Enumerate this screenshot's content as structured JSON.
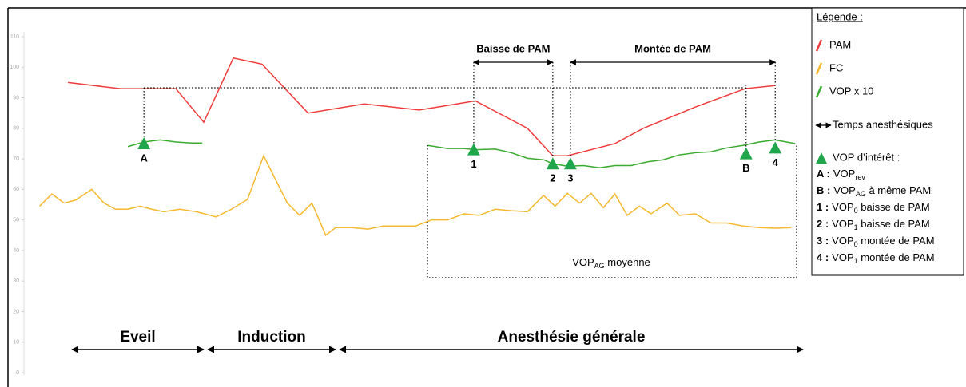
{
  "chart_data": {
    "type": "line",
    "ylim": [
      0,
      110
    ],
    "yticks": [
      0,
      10,
      20,
      30,
      40,
      50,
      60,
      70,
      80,
      90,
      100,
      110
    ],
    "xlim": [
      0,
      100
    ],
    "series": [
      {
        "name": "PAM",
        "color": "#ee3b3b",
        "x": [
          4.7,
          11.5,
          18.75,
          22.4,
          26.25,
          30,
          36,
          43.3,
          50.5,
          54.2,
          57.8,
          64.6,
          67.9,
          69.8,
          76,
          79.7,
          86.5,
          93,
          96.9
        ],
        "values": [
          95,
          93,
          93,
          82,
          103,
          101,
          85,
          88,
          86,
          87.5,
          89,
          80,
          71,
          71,
          75,
          80,
          87,
          93,
          94
        ]
      },
      {
        "name": "FC",
        "color": "#f5b82e",
        "x": [
          1,
          2.6,
          4.2,
          5.7,
          7.8,
          9.4,
          10.9,
          12.5,
          14.1,
          15.6,
          17.2,
          19.3,
          21.4,
          24,
          26,
          28.1,
          30.2,
          31.8,
          33.3,
          34.9,
          36.5,
          38.3,
          39.6,
          41.7,
          43.8,
          45.8,
          47.9,
          50,
          52.1,
          54.2,
          56.3,
          58.3,
          60.4,
          62.5,
          64.6,
          66.7,
          68.2,
          69.8,
          71.4,
          72.9,
          74.5,
          76,
          77.6,
          79.2,
          80.7,
          82.8,
          84.4,
          86.5,
          88.5,
          90.6,
          92.7,
          94.8,
          96.9,
          99
        ],
        "values": [
          54.5,
          58.5,
          55.5,
          56.5,
          60,
          55.5,
          53.5,
          53.5,
          54.5,
          53.5,
          52.7,
          53.5,
          52.7,
          51,
          53.5,
          56.7,
          71,
          63,
          55.5,
          51.5,
          55.5,
          45,
          47.5,
          47.5,
          47,
          48,
          48,
          48,
          50,
          50,
          52,
          51.5,
          53.5,
          53,
          52.7,
          58,
          54.5,
          58.7,
          55.5,
          58.7,
          54,
          58.5,
          51.5,
          54.5,
          52,
          55.5,
          51.5,
          52,
          49,
          49,
          48,
          47.5,
          47.3,
          47.5
        ]
      },
      {
        "name": "VOP x 10",
        "color": "#3aab2e",
        "x": [
          12.5,
          14.6,
          16.7,
          18.8,
          20.8,
          22.2,
          35,
          51.6,
          54.2,
          56.3,
          57.8,
          60.4,
          62.5,
          64.6,
          66.7,
          67.9,
          69.8,
          71.9,
          74,
          76,
          78.1,
          80.2,
          82.3,
          84.4,
          86.5,
          88.5,
          90.6,
          92.7,
          94.8,
          96.9,
          99.5
        ],
        "values": [
          74,
          75.5,
          76.2,
          75.5,
          75.2,
          75.2,
          null,
          74.4,
          73.4,
          73.4,
          73,
          73.2,
          72,
          70.2,
          69.7,
          68.4,
          67.6,
          67.8,
          67.1,
          67.8,
          67.8,
          69,
          69.7,
          71.3,
          72,
          72.3,
          73.6,
          74.4,
          75.5,
          76.2,
          75
        ]
      }
    ],
    "markers": [
      {
        "label": "A",
        "x": 14.6,
        "value": 75
      },
      {
        "label": "1",
        "x": 57.6,
        "value": 73
      },
      {
        "label": "2",
        "x": 67.9,
        "value": 68.4
      },
      {
        "label": "3",
        "x": 70.2,
        "value": 68.4
      },
      {
        "label": "B",
        "x": 93.1,
        "value": 71.7
      },
      {
        "label": "4",
        "x": 96.9,
        "value": 73.6
      }
    ],
    "brackets": [
      "Baisse de PAM",
      "Montée de PAM"
    ],
    "phases": [
      "Eveil",
      "Induction",
      "Anesthésie générale"
    ],
    "box_label": {
      "text": "VOP",
      "sub": "AG",
      "rest": " moyenne"
    },
    "legend": {
      "title": "Légende :",
      "times": "Temps anesthésiques",
      "markers": "VOP d’intérêt :",
      "lines": [
        {
          "key": "A :",
          "text": "VOP",
          "sub": "rev",
          "rest": ""
        },
        {
          "key": "B :",
          "text": "VOP",
          "sub": "AG",
          "rest": " à même PAM"
        },
        {
          "key": "1 :",
          "text": "VOP",
          "sub": "0",
          "rest": " baisse de PAM"
        },
        {
          "key": "2 :",
          "text": "VOP",
          "sub": "1",
          "rest": " baisse de PAM"
        },
        {
          "key": "3 :",
          "text": "VOP",
          "sub": "0",
          "rest": " montée de PAM"
        },
        {
          "key": "4 :",
          "text": "VOP",
          "sub": "1",
          "rest": " montée de PAM"
        }
      ]
    }
  }
}
